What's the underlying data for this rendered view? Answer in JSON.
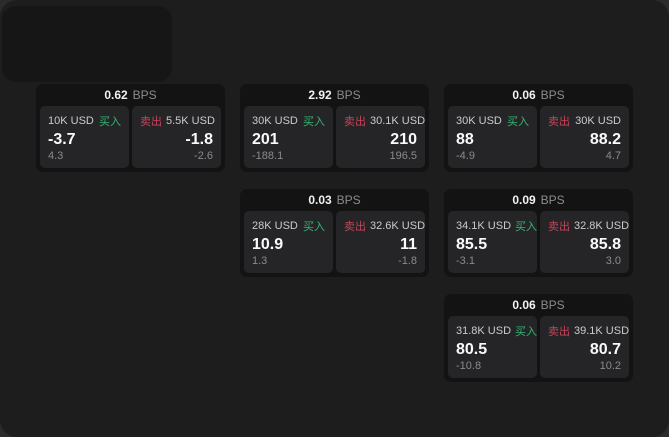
{
  "labels": {
    "buy": "买入",
    "sell": "卖出",
    "bps_unit": "BPS"
  },
  "colors": {
    "buy_green": "#33b673",
    "sell_red": "#c64459",
    "window_bg": "#1d1d1e",
    "card_bg": "#131314",
    "panel_bg": "#252527"
  },
  "cards": [
    {
      "row": 1,
      "col": 1,
      "bps": "0.62",
      "buy": {
        "amount": "10K USD",
        "value": "-3.7",
        "sub": "4.3"
      },
      "sell": {
        "amount": "5.5K USD",
        "value": "-1.8",
        "sub": "-2.6"
      }
    },
    {
      "row": 1,
      "col": 2,
      "bps": "2.92",
      "buy": {
        "amount": "30K USD",
        "value": "201",
        "sub": "-188.1"
      },
      "sell": {
        "amount": "30.1K USD",
        "value": "210",
        "sub": "196.5"
      }
    },
    {
      "row": 1,
      "col": 3,
      "bps": "0.06",
      "buy": {
        "amount": "30K USD",
        "value": "88",
        "sub": "-4.9"
      },
      "sell": {
        "amount": "30K USD",
        "value": "88.2",
        "sub": "4.7"
      }
    },
    {
      "row": 2,
      "col": 2,
      "bps": "0.03",
      "buy": {
        "amount": "28K USD",
        "value": "10.9",
        "sub": "1.3"
      },
      "sell": {
        "amount": "32.6K USD",
        "value": "11",
        "sub": "-1.8"
      }
    },
    {
      "row": 2,
      "col": 3,
      "bps": "0.09",
      "buy": {
        "amount": "34.1K USD",
        "value": "85.5",
        "sub": "-3.1"
      },
      "sell": {
        "amount": "32.8K USD",
        "value": "85.8",
        "sub": "3.0"
      }
    },
    {
      "row": 3,
      "col": 3,
      "bps": "0.06",
      "buy": {
        "amount": "31.8K USD",
        "value": "80.5",
        "sub": "-10.8"
      },
      "sell": {
        "amount": "39.1K USD",
        "value": "80.7",
        "sub": "10.2"
      }
    }
  ]
}
